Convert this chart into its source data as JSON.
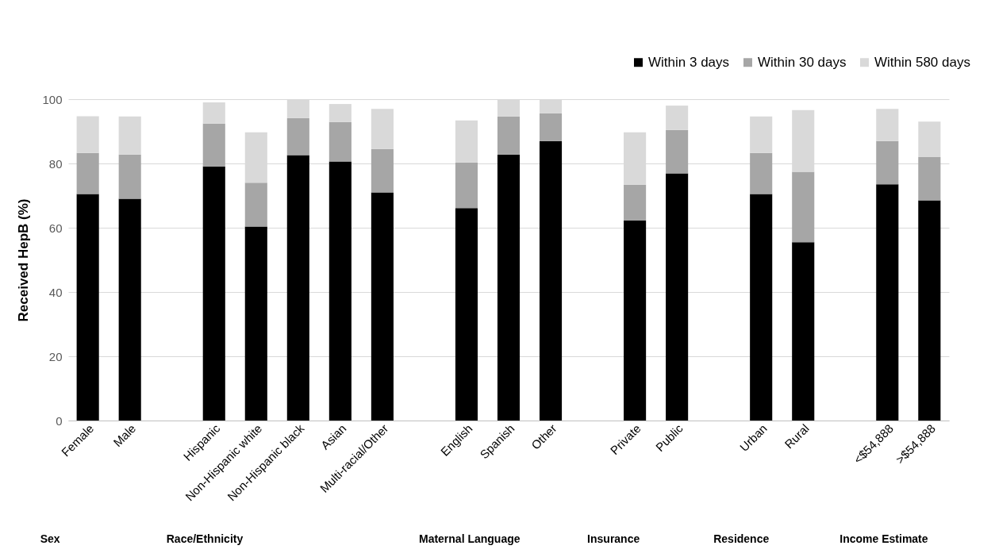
{
  "chart_data": {
    "type": "bar",
    "stacked": true,
    "ylabel": "Received HepB (%)",
    "categories": [
      "Female",
      "Male",
      null,
      "Hispanic",
      "Non-Hispanic white",
      "Non-Hispanic black",
      "Asian",
      "Multi-racial/Other",
      null,
      "English",
      "Spanish",
      "Other",
      null,
      "Private",
      "Public",
      null,
      "Urban",
      "Rural",
      null,
      "<$54,888",
      ">$54,888"
    ],
    "series": [
      {
        "name": "Within 3 days",
        "color": "#000000",
        "values": [
          70.5,
          69,
          null,
          79.1,
          60.4,
          82.6,
          80.6,
          71,
          null,
          66.1,
          82.8,
          87,
          null,
          62.2,
          76.9,
          null,
          70.5,
          55.5,
          null,
          73.5,
          68.5
        ]
      },
      {
        "name": "Within 30 days",
        "color": "#a6a6a6",
        "values": [
          12.8,
          13.8,
          null,
          13.3,
          13.6,
          11.5,
          12.3,
          13.5,
          null,
          14.2,
          11.8,
          8.6,
          null,
          11.2,
          13.5,
          null,
          12.8,
          21.9,
          null,
          13.5,
          13.5
        ]
      },
      {
        "name": "Within 580 days",
        "color": "#d9d9d9",
        "values": [
          11.4,
          11.8,
          null,
          6.6,
          15.7,
          5.9,
          5.6,
          12.5,
          null,
          13.1,
          5.4,
          4.4,
          null,
          16.3,
          7.6,
          null,
          11.3,
          19.2,
          null,
          10,
          11
        ]
      }
    ],
    "ylim": [
      0,
      100
    ],
    "yticks": [
      0,
      20,
      40,
      60,
      80,
      100
    ],
    "grid": "y",
    "legend": "top right",
    "annotations": [
      "Sex",
      "Race/Ethnicity",
      "Maternal Language",
      "Insurance",
      "Residence",
      "Income Estimate"
    ]
  }
}
